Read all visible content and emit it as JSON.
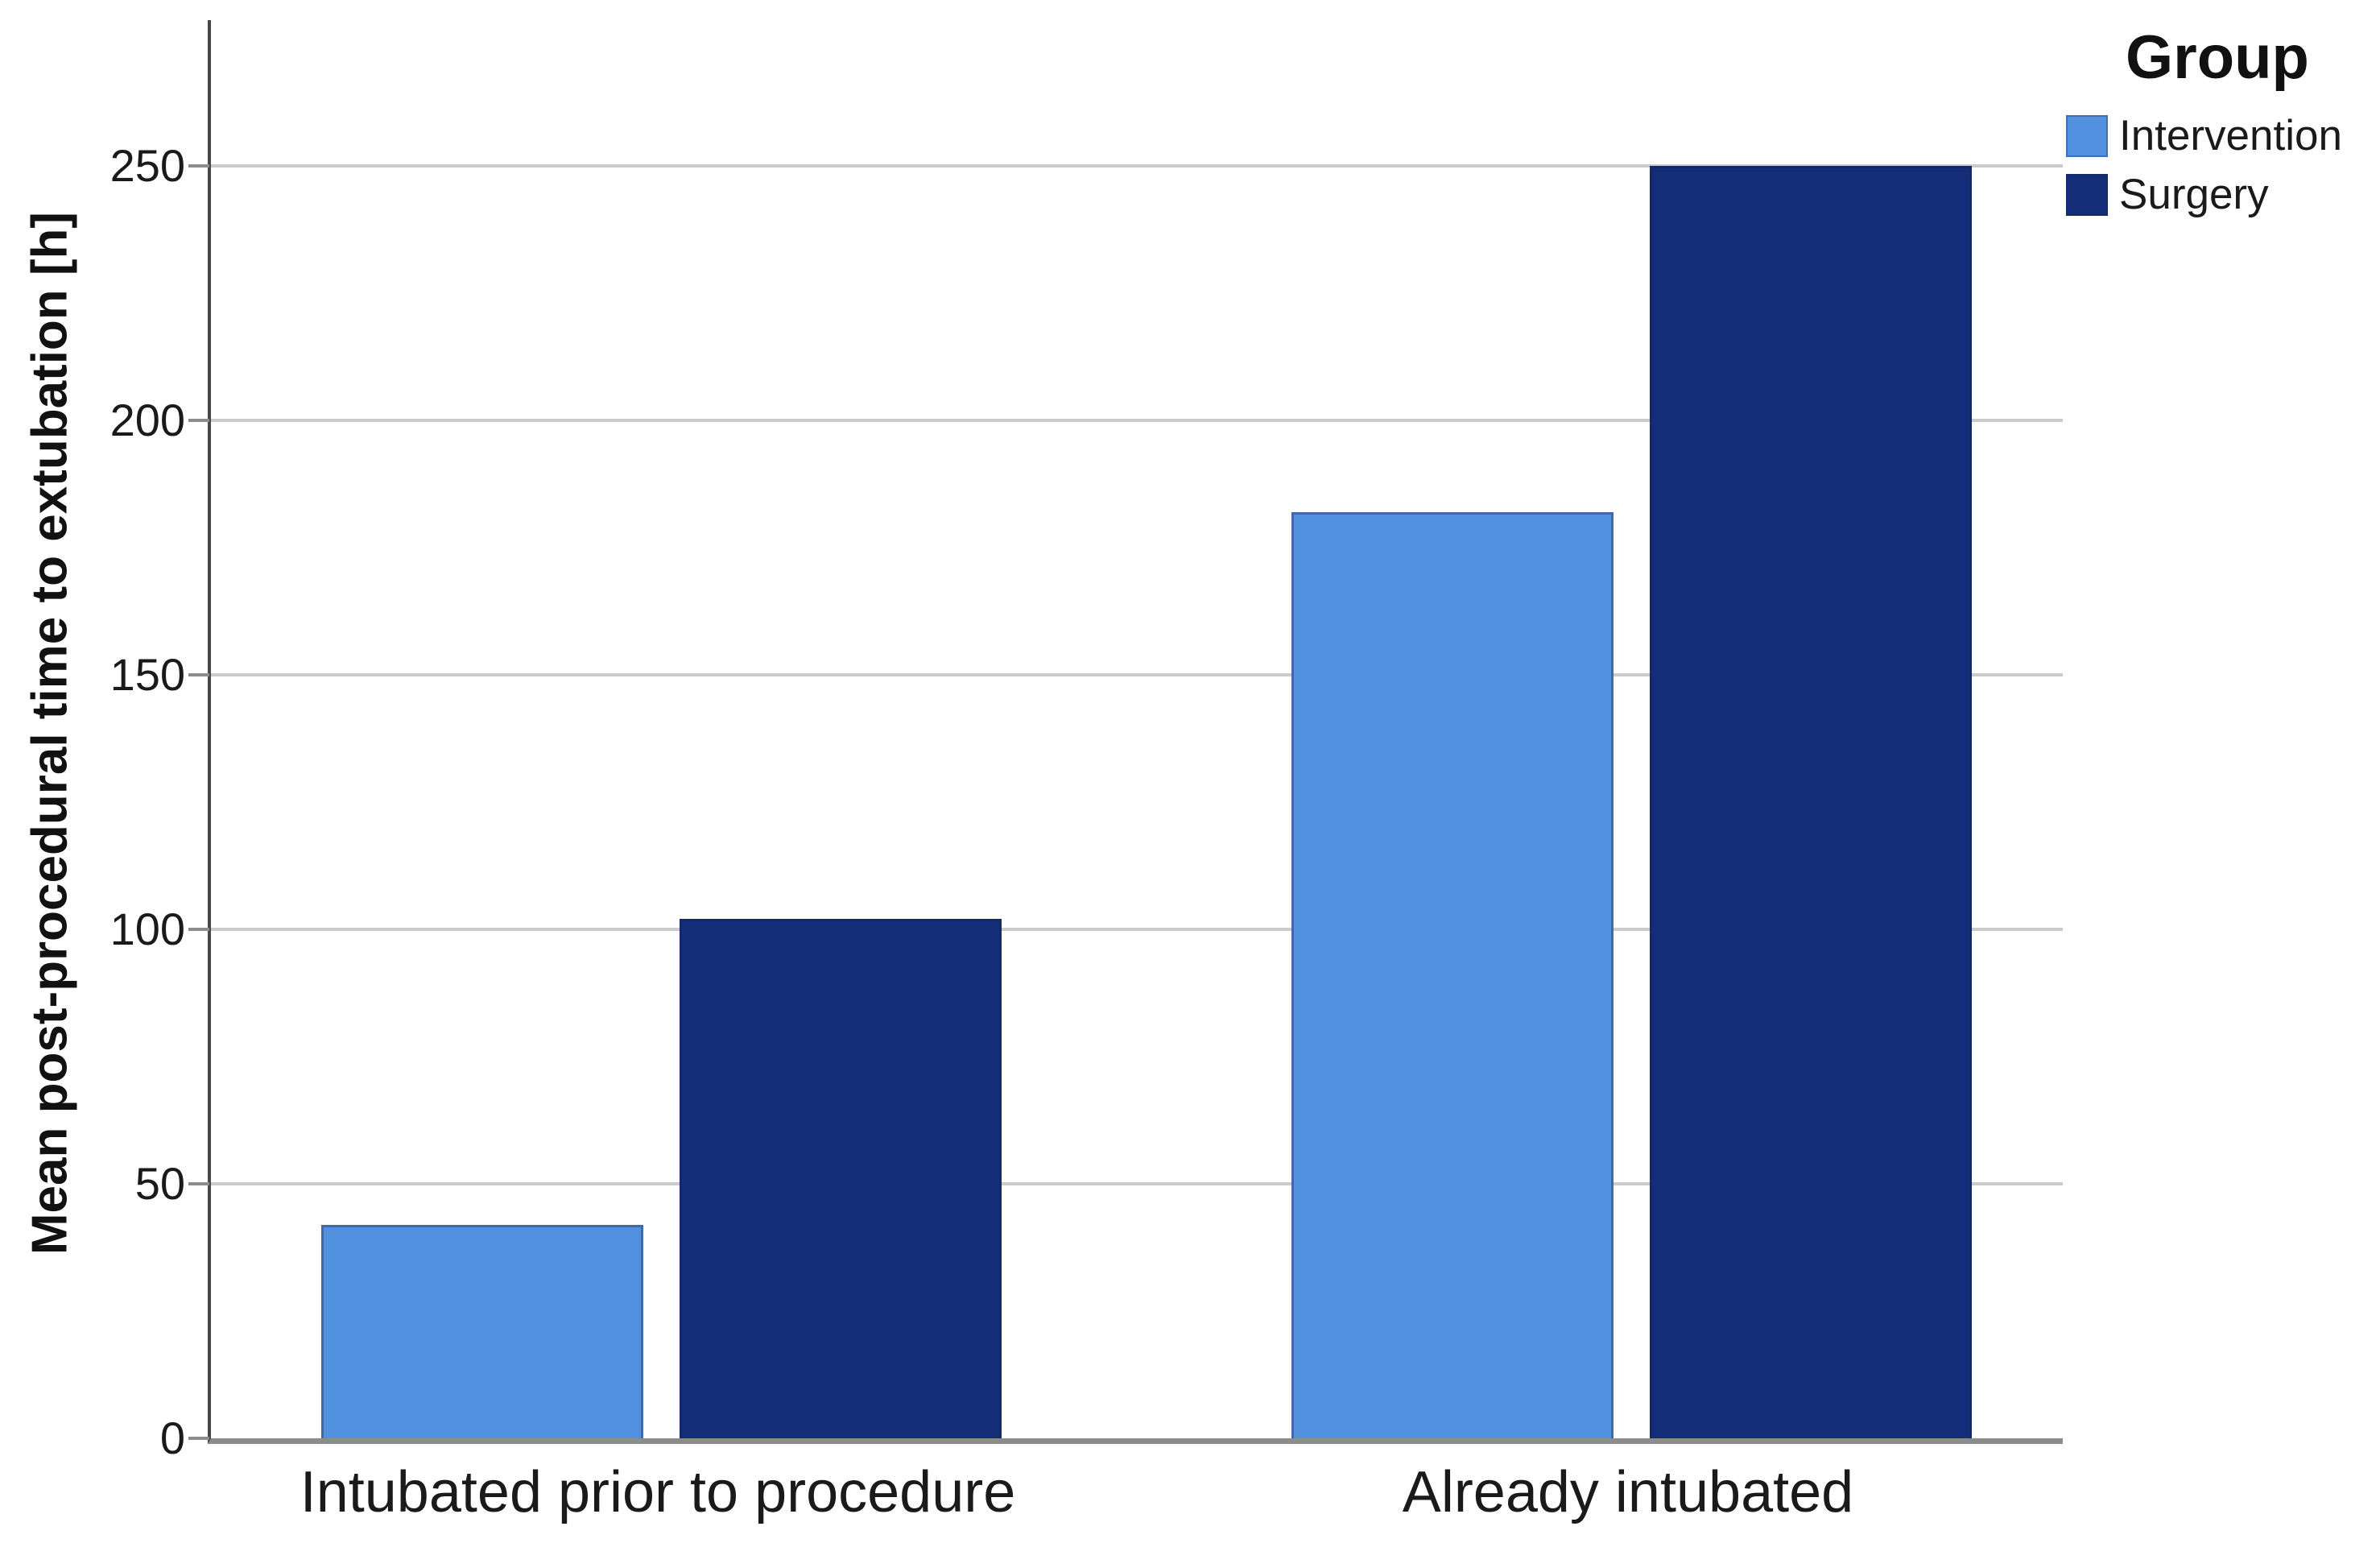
{
  "chart_data": {
    "type": "bar",
    "title": "",
    "xlabel": "",
    "ylabel": "Mean post-procedural time to extubation [h]",
    "categories": [
      "Intubated prior to procedure",
      "Already intubated"
    ],
    "series": [
      {
        "name": "Intervention",
        "color": "#5291DF",
        "values": [
          42,
          182
        ]
      },
      {
        "name": "Surgery",
        "color": "#132D79",
        "values": [
          102,
          250
        ]
      }
    ],
    "yticks": [
      0,
      50,
      100,
      150,
      200,
      250
    ],
    "ylim": [
      0,
      278
    ],
    "grid": "horizontal",
    "legend_title": "Group",
    "legend_position": "top-right"
  },
  "colors": {
    "bar_intervention": "#5291DF",
    "bar_surgery": "#132D79",
    "gridline": "#CBCBCB",
    "y_axis_line": "#474747",
    "x_axis_line": "#8C8C8C",
    "text": "#1A1A1A"
  }
}
